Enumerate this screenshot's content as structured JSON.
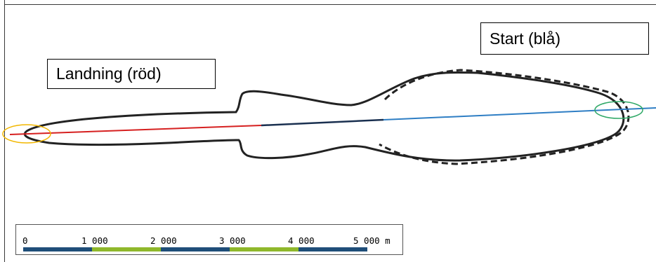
{
  "labels": {
    "landing": "Landning (röd)",
    "start": "Start (blå)"
  },
  "scale_bar": {
    "ticks": [
      "0",
      "1 000",
      "2 000",
      "3 000",
      "4 000",
      "5 000 m"
    ],
    "colors": [
      "#1f4e79",
      "#8fb82b",
      "#1f4e79",
      "#8fb82b",
      "#1f4e79"
    ]
  },
  "colors": {
    "landing_path": "#d62020",
    "start_path": "#2e7ec4",
    "overlap_path": "#1a3050",
    "outline": "#222222",
    "landing_marker": "#f2b700",
    "start_marker": "#2ea866"
  }
}
